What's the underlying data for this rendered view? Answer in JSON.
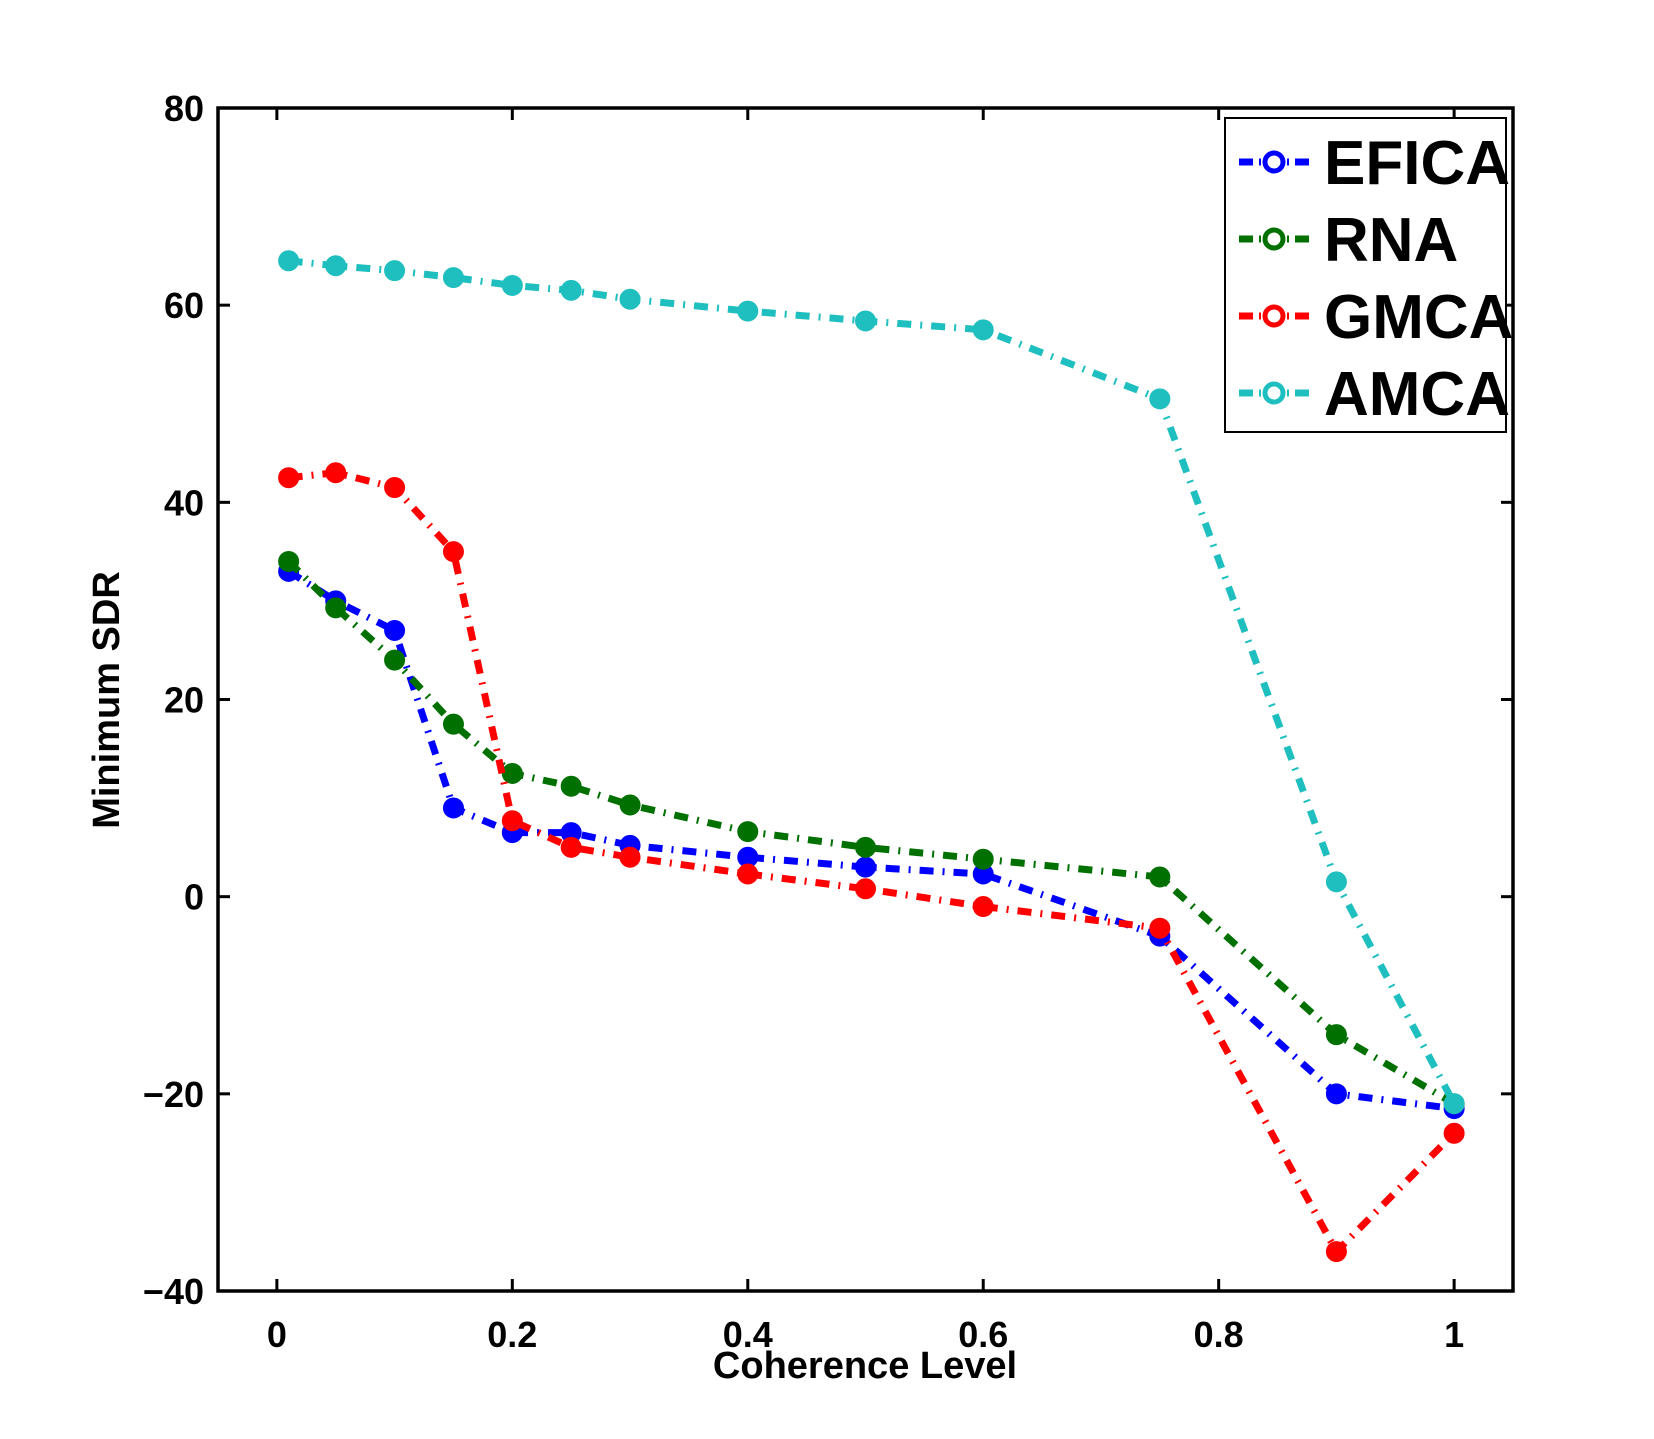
{
  "chart_data": {
    "type": "line",
    "title": "",
    "xlabel": "Coherence Level",
    "ylabel": "Minimum SDR",
    "xlim": [
      -0.05,
      1.05
    ],
    "ylim": [
      -40,
      80
    ],
    "xticks": [
      0,
      0.2,
      0.4,
      0.6,
      0.8,
      1
    ],
    "xtick_labels": [
      "0",
      "0.2",
      "0.4",
      "0.6",
      "0.8",
      "1"
    ],
    "yticks": [
      -40,
      -20,
      0,
      20,
      40,
      60,
      80
    ],
    "ytick_labels": [
      "−40",
      "−20",
      "0",
      "20",
      "40",
      "60",
      "80"
    ],
    "grid": false,
    "legend_position": "top-right",
    "x": [
      0.01,
      0.05,
      0.1,
      0.15,
      0.2,
      0.25,
      0.3,
      0.4,
      0.5,
      0.6,
      0.75,
      0.9,
      1.0
    ],
    "series": [
      {
        "name": "EFICA",
        "color": "#0000ff",
        "values": [
          33,
          30,
          27,
          9,
          6.5,
          6.5,
          5.2,
          4,
          3,
          2.3,
          -4,
          -20,
          -21.5
        ]
      },
      {
        "name": "RNA",
        "color": "#007000",
        "values": [
          34,
          29.3,
          24,
          17.5,
          12.5,
          11.2,
          9.3,
          6.6,
          5,
          3.8,
          2,
          -14,
          -21
        ]
      },
      {
        "name": "GMCA",
        "color": "#ff0000",
        "values": [
          42.5,
          43,
          41.5,
          35,
          7.7,
          5,
          4,
          2.3,
          0.8,
          -1,
          -3.2,
          -36,
          -24
        ]
      },
      {
        "name": "AMCA",
        "color": "#1fbfbf",
        "values": [
          64.5,
          64,
          63.5,
          62.8,
          62,
          61.5,
          60.6,
          59.4,
          58.4,
          57.5,
          50.5,
          1.5,
          -21
        ]
      }
    ]
  }
}
